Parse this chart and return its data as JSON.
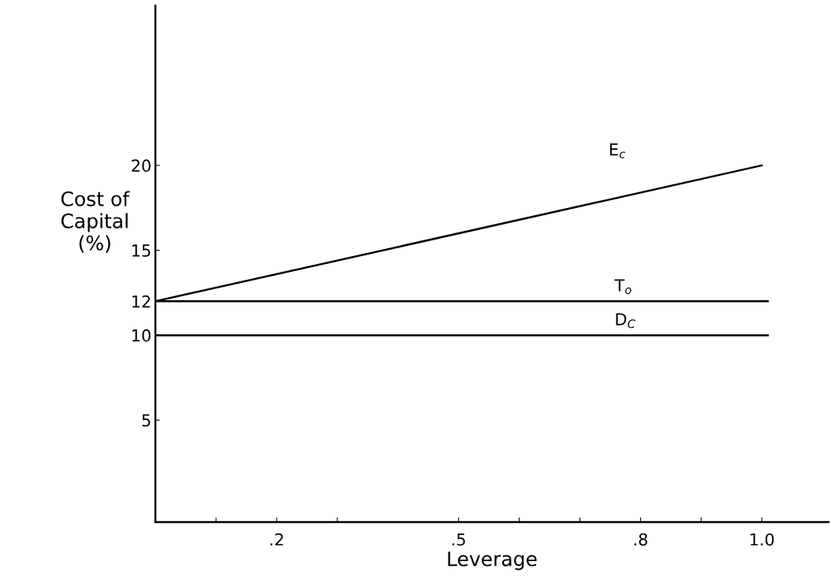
{
  "chart_data": {
    "type": "line",
    "xlabel": "Leverage",
    "ylabel": "Cost of\nCapital\n(%)",
    "series": [
      {
        "name": "E$_{c}$",
        "color": "#000000",
        "x": [
          0,
          1.0
        ],
        "values": [
          12,
          20
        ]
      },
      {
        "name": "T$_{o}$",
        "color": "#000000",
        "x": [
          0,
          1.01
        ],
        "values": [
          12,
          12
        ]
      },
      {
        "name": "D$_{C}$",
        "color": "#000000",
        "x": [
          0,
          1.01
        ],
        "values": [
          10,
          10
        ]
      }
    ],
    "xlim": [
      0,
      1.11
    ],
    "ylim": [
      -1,
      29.4
    ],
    "xticks": [
      {
        "value": 0.1,
        "label": null
      },
      {
        "value": 0.2,
        "label": ".2"
      },
      {
        "value": 0.3,
        "label": null
      },
      {
        "value": 0.5,
        "label": ".5"
      },
      {
        "value": 0.6,
        "label": null
      },
      {
        "value": 0.7,
        "label": null
      },
      {
        "value": 0.8,
        "label": ".8"
      },
      {
        "value": 0.9,
        "label": null
      },
      {
        "value": 1.0,
        "label": "1.0"
      }
    ],
    "yticks": [
      5,
      10,
      12,
      15,
      20
    ],
    "grid": false,
    "legend": false,
    "marker": "none",
    "line_style": "solid"
  }
}
